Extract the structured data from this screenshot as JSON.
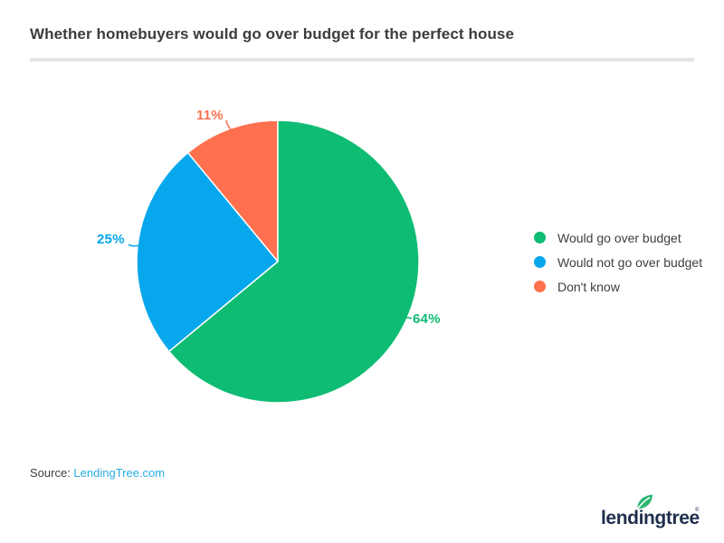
{
  "page": {
    "title": "Whether homebuyers would go over budget for the perfect house"
  },
  "chart_data": {
    "type": "pie",
    "title": "Whether homebuyers would go over budget for the perfect house",
    "categories": [
      "Would go over budget",
      "Would not go over budget",
      "Don't know"
    ],
    "values": [
      64,
      25,
      11
    ],
    "slice_labels": [
      "64%",
      "25%",
      "11%"
    ],
    "colors": [
      "#0fbc74",
      "#06a7ec",
      "#fe704e"
    ],
    "start_angle": "top",
    "direction": "clockwise",
    "legend_position": "right",
    "background": "#ffffff"
  },
  "source": {
    "label": "Source: ",
    "link_text": "LendingTree.com"
  },
  "logo": {
    "text": "lendingtree",
    "reg_mark": "®",
    "leaf_color": "#2cb670",
    "text_color": "#1f2f4d"
  }
}
